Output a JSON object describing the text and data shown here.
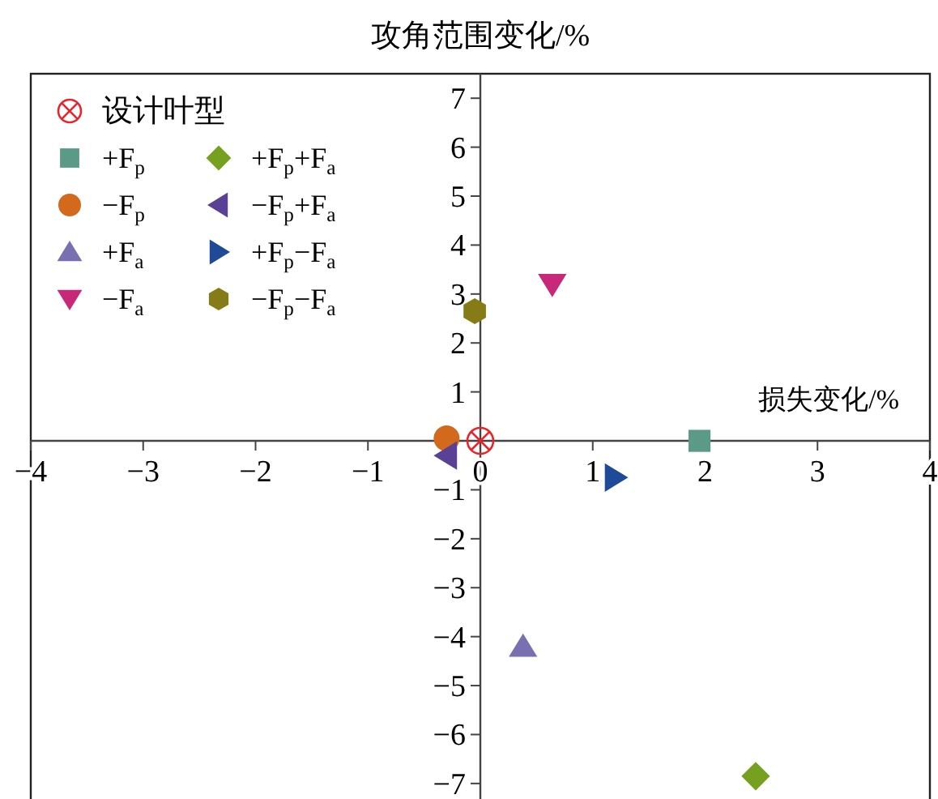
{
  "chart_data": {
    "type": "scatter",
    "ylabel": "攻角范围变化/%",
    "xlabel": "损失变化/%",
    "xlim": [
      -4,
      4
    ],
    "ylim": [
      -7.35,
      7.5
    ],
    "xticks": [
      {
        "value": -4,
        "label": "−4"
      },
      {
        "value": -3,
        "label": "−3"
      },
      {
        "value": -2,
        "label": "−2"
      },
      {
        "value": -1,
        "label": "−1"
      },
      0,
      1,
      2,
      3,
      4
    ],
    "yticks": [
      {
        "value": -7,
        "label": "−7"
      },
      {
        "value": -6,
        "label": "−6"
      },
      {
        "value": -5,
        "label": "−5"
      },
      {
        "value": -4,
        "label": "−4"
      },
      {
        "value": -3,
        "label": "−3"
      },
      {
        "value": -2,
        "label": "−2"
      },
      {
        "value": -1,
        "label": "−1"
      },
      1,
      2,
      3,
      4,
      5,
      6,
      7
    ],
    "legend": "top left",
    "grid": false,
    "series": [
      {
        "name": "设计叶型",
        "color": "#e8242c",
        "marker": "circle-cross",
        "x": [
          0
        ],
        "values": [
          0
        ]
      },
      {
        "name": "+F$_{p}$",
        "color": "#5a9a86",
        "marker": "square",
        "x": [
          1.95
        ],
        "values": [
          0
        ]
      },
      {
        "name": "−F$_{p}$",
        "color": "#d2691c",
        "marker": "circle",
        "x": [
          -0.3
        ],
        "values": [
          0.05
        ]
      },
      {
        "name": "+F$_{a}$",
        "color": "#7870b0",
        "marker": "triangle",
        "x": [
          0.38
        ],
        "values": [
          -4.2
        ]
      },
      {
        "name": "−F$_{a}$",
        "color": "#c8287a",
        "marker": "triangle-down",
        "x": [
          0.64
        ],
        "values": [
          3.2
        ]
      },
      {
        "name": "+F$_{p}$+F$_{a}$",
        "color": "#76a020",
        "marker": "diamond",
        "x": [
          2.45
        ],
        "values": [
          -6.85
        ]
      },
      {
        "name": "−F$_{p}$+F$_{a}$",
        "color": "#5b4196",
        "marker": "triangle-left",
        "x": [
          -0.3
        ],
        "values": [
          -0.3
        ]
      },
      {
        "name": "+F$_{p}$−F$_{a}$",
        "color": "#1f4a98",
        "marker": "triangle-right",
        "x": [
          1.2
        ],
        "values": [
          -0.75
        ]
      },
      {
        "name": "−F$_{p}$−F$_{a}$",
        "color": "#857c18",
        "x": [
          -0.05
        ],
        "values": [
          2.65
        ]
      }
    ]
  }
}
